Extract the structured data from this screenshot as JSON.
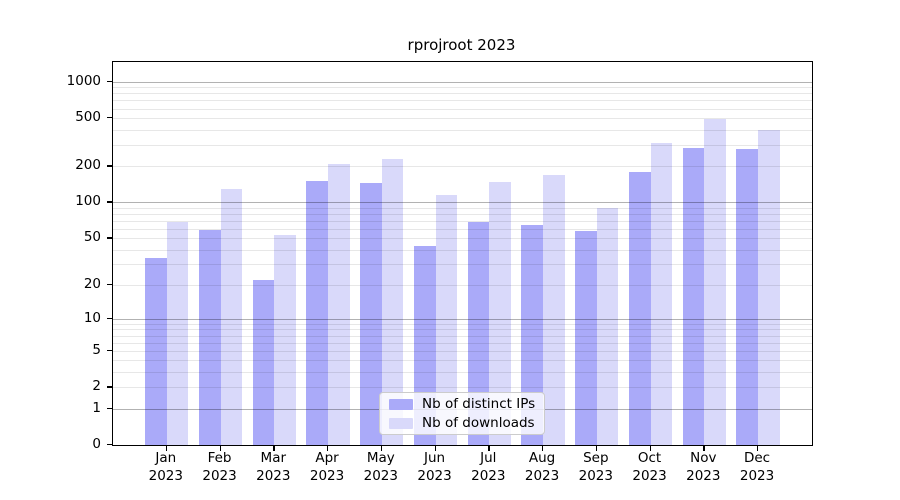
{
  "chart_data": {
    "type": "bar",
    "title": "rprojroot 2023",
    "y_scale": "log1p",
    "categories": [
      "Jan 2023",
      "Feb 2023",
      "Mar 2023",
      "Apr 2023",
      "May 2023",
      "Jun 2023",
      "Jul 2023",
      "Aug 2023",
      "Sep 2023",
      "Oct 2023",
      "Nov 2023",
      "Dec 2023"
    ],
    "x_tick_line1": [
      "Jan",
      "Feb",
      "Mar",
      "Apr",
      "May",
      "Jun",
      "Jul",
      "Aug",
      "Sep",
      "Oct",
      "Nov",
      "Dec"
    ],
    "x_tick_line2": [
      "2023",
      "2023",
      "2023",
      "2023",
      "2023",
      "2023",
      "2023",
      "2023",
      "2023",
      "2023",
      "2023",
      "2023"
    ],
    "series": [
      {
        "name": "Nb of distinct IPs",
        "color": "#aaaaf9",
        "values": [
          34,
          59,
          22,
          150,
          146,
          43,
          69,
          65,
          57,
          179,
          283,
          277
        ]
      },
      {
        "name": "Nb of downloads",
        "color": "#d9d9fa",
        "values": [
          68,
          128,
          53,
          210,
          230,
          114,
          148,
          168,
          89,
          310,
          495,
          400
        ]
      }
    ],
    "yticks": [
      0,
      1,
      2,
      5,
      10,
      20,
      50,
      100,
      200,
      500,
      1000
    ],
    "ylim": [
      0,
      1455
    ],
    "grid": {
      "major": [
        1,
        10,
        100,
        1000
      ],
      "minor": [
        2,
        3,
        4,
        5,
        6,
        7,
        8,
        9,
        20,
        30,
        40,
        50,
        60,
        70,
        80,
        90,
        200,
        300,
        400,
        500,
        600,
        700,
        800,
        900
      ],
      "visible": true
    },
    "legend": {
      "position": "lower center",
      "labels": [
        "Nb of distinct IPs",
        "Nb of downloads"
      ]
    }
  },
  "colors": {
    "bar_distinct_ips": "#aaaaf9",
    "bar_downloads": "#d9d9fa",
    "grid_major": "#b3b3b3",
    "grid_minor": "#e8e8e8",
    "axis_frame": "#000000",
    "background": "#ffffff",
    "legend_border": "#cccccc",
    "text": "#000000"
  }
}
